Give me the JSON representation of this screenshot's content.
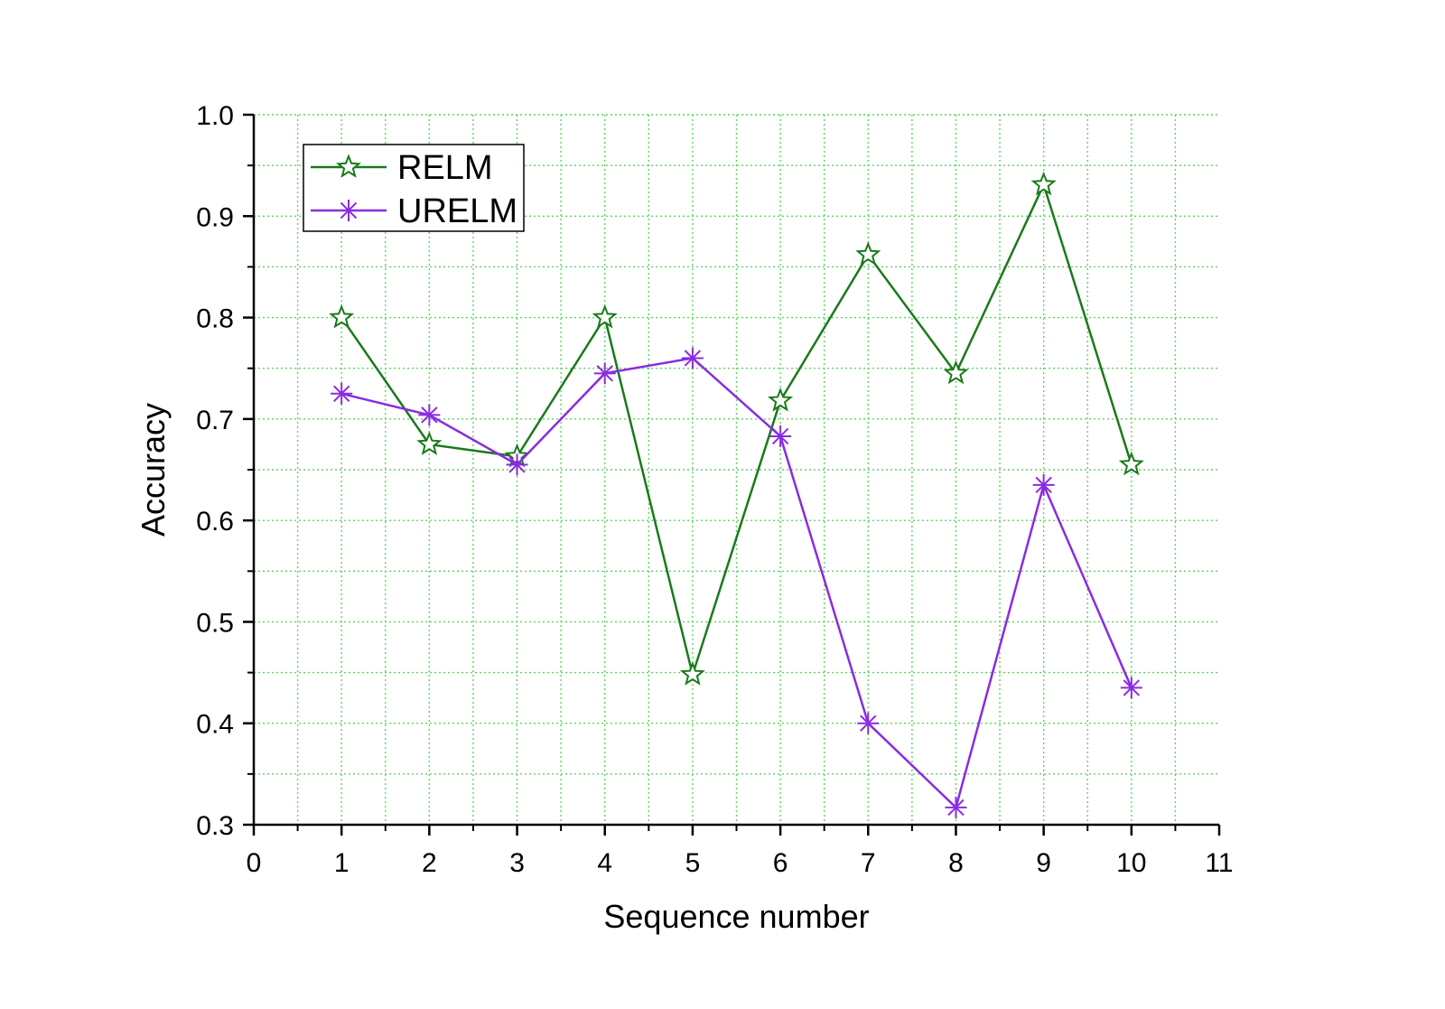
{
  "chart_data": {
    "type": "line",
    "title": "",
    "xlabel": "Sequence number",
    "ylabel": "Accuracy",
    "xlim": [
      0,
      11
    ],
    "ylim": [
      0.3,
      1.0
    ],
    "x_ticks": [
      "0",
      "1",
      "2",
      "3",
      "4",
      "5",
      "6",
      "7",
      "8",
      "9",
      "10",
      "11"
    ],
    "y_ticks": [
      "0.3",
      "0.4",
      "0.5",
      "0.6",
      "0.7",
      "0.8",
      "0.9",
      "1.0"
    ],
    "grid": true,
    "legend_position": "top-left",
    "x": [
      1,
      2,
      3,
      4,
      5,
      6,
      7,
      8,
      9,
      10
    ],
    "series": [
      {
        "name": "RELM",
        "color": "#1a7a1a",
        "marker": "star",
        "values": [
          0.8,
          0.675,
          0.663,
          0.8,
          0.448,
          0.718,
          0.862,
          0.745,
          0.931,
          0.655
        ]
      },
      {
        "name": "URELM",
        "color": "#8a2be2",
        "marker": "asterisk",
        "values": [
          0.725,
          0.704,
          0.655,
          0.745,
          0.76,
          0.683,
          0.4,
          0.317,
          0.635,
          0.435
        ]
      }
    ],
    "grid_color": "#5cd65c"
  }
}
